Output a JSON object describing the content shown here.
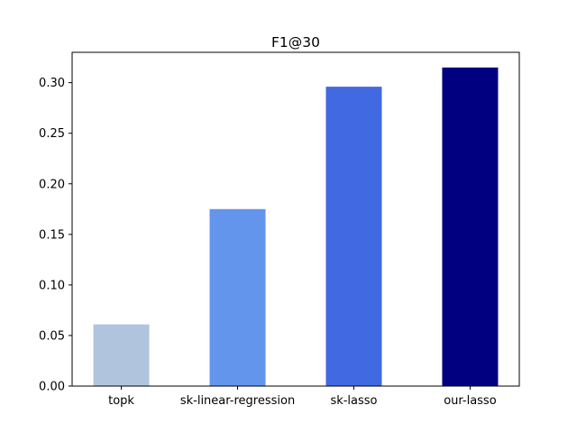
{
  "chart_data": {
    "type": "bar",
    "title": "F1@30",
    "xlabel": "",
    "ylabel": "",
    "categories": [
      "topk",
      "sk-linear-regression",
      "sk-lasso",
      "our-lasso"
    ],
    "values": [
      0.061,
      0.175,
      0.296,
      0.315
    ],
    "colors": [
      "#b0c4de",
      "#6495ed",
      "#4169e1",
      "#000080"
    ],
    "ylim": [
      0.0,
      0.33
    ],
    "yticks": [
      0.0,
      0.05,
      0.1,
      0.15,
      0.2,
      0.25,
      0.3
    ],
    "ytick_labels": [
      "0.00",
      "0.05",
      "0.10",
      "0.15",
      "0.20",
      "0.25",
      "0.30"
    ],
    "grid": false,
    "legend": "none"
  }
}
